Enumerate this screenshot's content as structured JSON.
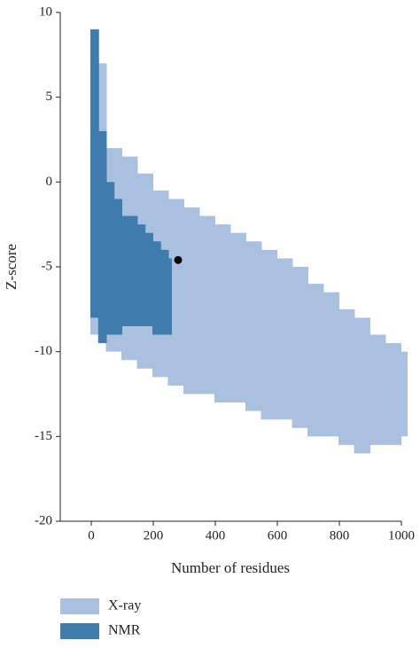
{
  "chart_data": {
    "type": "range",
    "x_label": "Number of residues",
    "y_label": "Z-score",
    "xlim": [
      -100,
      1000
    ],
    "xticks": [
      0,
      200,
      400,
      600,
      800,
      1000
    ],
    "ylim": [
      -20,
      10
    ],
    "yticks": [
      -20,
      -15,
      -10,
      -5,
      0,
      5,
      10
    ],
    "series": [
      {
        "name": "X-ray",
        "color": "#a9c1de",
        "x": [
          0,
          50,
          100,
          150,
          200,
          250,
          300,
          350,
          400,
          450,
          500,
          550,
          600,
          650,
          700,
          750,
          800,
          850,
          900,
          950,
          1000
        ],
        "high": [
          7,
          2,
          1.5,
          0.5,
          -0.5,
          -1,
          -1.5,
          -2,
          -2.5,
          -3,
          -3.5,
          -4,
          -4.5,
          -5,
          -6,
          -6.5,
          -7.5,
          -8,
          -9,
          -9.5,
          -10
        ],
        "low": [
          -9,
          -10,
          -10.5,
          -11,
          -11.5,
          -12,
          -12.5,
          -12.5,
          -13,
          -13,
          -13.5,
          -14,
          -14,
          -14.5,
          -15,
          -15,
          -15.5,
          -16,
          -15.5,
          -15.5,
          -15
        ]
      },
      {
        "name": "NMR",
        "color": "#3f7cad",
        "x": [
          0,
          25,
          50,
          75,
          100,
          125,
          150,
          175,
          200,
          225,
          250
        ],
        "high": [
          9,
          3,
          0,
          -1,
          -2,
          -2,
          -2.5,
          -3,
          -3.5,
          -4,
          -4.5
        ],
        "low": [
          -8,
          -9.5,
          -9,
          -9,
          -8.5,
          -8.5,
          -8.5,
          -8.5,
          -9,
          -9,
          -9
        ]
      }
    ],
    "marker": {
      "x": 280,
      "y": -4.6,
      "color": "#000000"
    }
  }
}
